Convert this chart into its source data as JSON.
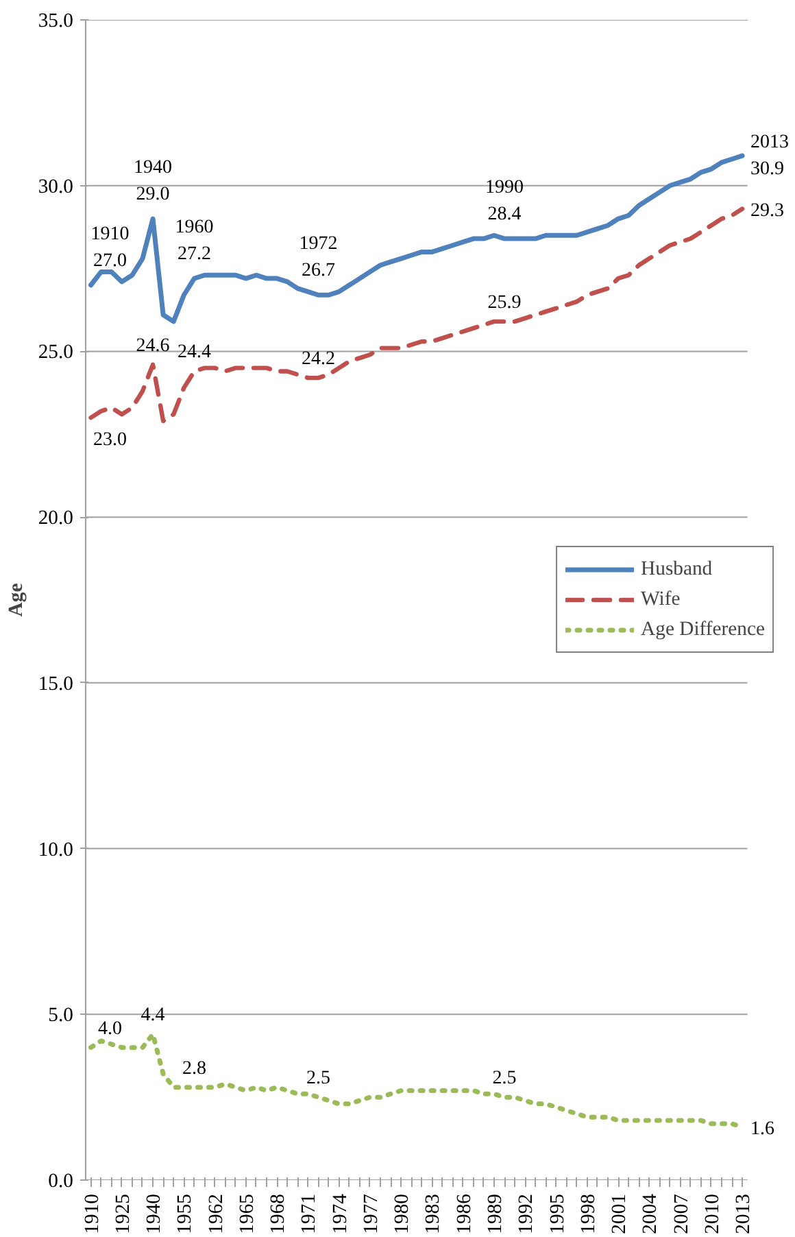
{
  "chart_data": {
    "type": "line",
    "ylabel": "Age",
    "categories": [
      "1910",
      null,
      null,
      "1925",
      null,
      null,
      "1940",
      null,
      null,
      "1955",
      null,
      null,
      "1962",
      null,
      null,
      "1965",
      null,
      null,
      "1968",
      null,
      null,
      "1971",
      null,
      null,
      "1974",
      null,
      null,
      "1977",
      null,
      null,
      "1980",
      null,
      null,
      "1983",
      null,
      null,
      "1986",
      null,
      null,
      "1989",
      null,
      null,
      "1992",
      null,
      null,
      "1995",
      null,
      null,
      "1998",
      null,
      null,
      "2001",
      null,
      null,
      "2004",
      null,
      null,
      "2007",
      null,
      null,
      "2010",
      null,
      null,
      "2013"
    ],
    "series": [
      {
        "name": "Husband",
        "color": "#4f81bd",
        "line_style": "solid",
        "values": [
          27.0,
          27.4,
          27.4,
          27.1,
          27.3,
          27.8,
          29.0,
          26.1,
          25.9,
          26.7,
          27.2,
          27.3,
          27.3,
          27.3,
          27.3,
          27.2,
          27.3,
          27.2,
          27.2,
          27.1,
          26.9,
          26.8,
          26.7,
          26.7,
          26.8,
          27.0,
          27.2,
          27.4,
          27.6,
          27.7,
          27.8,
          27.9,
          28.0,
          28.0,
          28.1,
          28.2,
          28.3,
          28.4,
          28.4,
          28.5,
          28.4,
          28.4,
          28.4,
          28.4,
          28.5,
          28.5,
          28.5,
          28.5,
          28.6,
          28.7,
          28.8,
          29.0,
          29.1,
          29.4,
          29.6,
          29.8,
          30.0,
          30.1,
          30.2,
          30.4,
          30.5,
          30.7,
          30.8,
          30.9
        ],
        "value_labels": [
          "1910\n27.0",
          null,
          null,
          null,
          null,
          null,
          "1940\n29.0",
          null,
          null,
          null,
          "1960\n27.2",
          null,
          null,
          null,
          null,
          null,
          null,
          null,
          null,
          null,
          null,
          null,
          "1972\n26.7",
          null,
          null,
          null,
          null,
          null,
          null,
          null,
          null,
          null,
          null,
          null,
          null,
          null,
          null,
          null,
          null,
          null,
          "1990\n28.4",
          null,
          null,
          null,
          null,
          null,
          null,
          null,
          null,
          null,
          null,
          null,
          null,
          null,
          null,
          null,
          null,
          null,
          null,
          null,
          null,
          null,
          null,
          "2013\n30.9"
        ]
      },
      {
        "name": "Wife",
        "color": "#c0504d",
        "line_style": "dashed",
        "values": [
          23.0,
          23.2,
          23.3,
          23.1,
          23.3,
          23.8,
          24.6,
          22.9,
          23.1,
          23.9,
          24.4,
          24.5,
          24.5,
          24.4,
          24.5,
          24.5,
          24.5,
          24.5,
          24.4,
          24.4,
          24.3,
          24.2,
          24.2,
          24.3,
          24.5,
          24.7,
          24.8,
          24.9,
          25.1,
          25.1,
          25.1,
          25.2,
          25.3,
          25.3,
          25.4,
          25.5,
          25.6,
          25.7,
          25.8,
          25.9,
          25.9,
          25.9,
          26.0,
          26.1,
          26.2,
          26.3,
          26.4,
          26.5,
          26.7,
          26.8,
          26.9,
          27.2,
          27.3,
          27.6,
          27.8,
          28.0,
          28.2,
          28.3,
          28.4,
          28.6,
          28.8,
          29.0,
          29.1,
          29.3
        ],
        "value_labels": [
          "23.0",
          null,
          null,
          null,
          null,
          null,
          "24.6",
          null,
          null,
          null,
          "24.4",
          null,
          null,
          null,
          null,
          null,
          null,
          null,
          null,
          null,
          null,
          null,
          "24.2",
          null,
          null,
          null,
          null,
          null,
          null,
          null,
          null,
          null,
          null,
          null,
          null,
          null,
          null,
          null,
          null,
          null,
          "25.9",
          null,
          null,
          null,
          null,
          null,
          null,
          null,
          null,
          null,
          null,
          null,
          null,
          null,
          null,
          null,
          null,
          null,
          null,
          null,
          null,
          null,
          null,
          "29.3"
        ]
      },
      {
        "name": "Age Difference",
        "color": "#9bbb59",
        "line_style": "dotted",
        "values": [
          4.0,
          4.2,
          4.1,
          4.0,
          4.0,
          4.0,
          4.4,
          3.2,
          2.8,
          2.8,
          2.8,
          2.8,
          2.8,
          2.9,
          2.8,
          2.7,
          2.8,
          2.7,
          2.8,
          2.7,
          2.6,
          2.6,
          2.5,
          2.4,
          2.3,
          2.3,
          2.4,
          2.5,
          2.5,
          2.6,
          2.7,
          2.7,
          2.7,
          2.7,
          2.7,
          2.7,
          2.7,
          2.7,
          2.6,
          2.6,
          2.5,
          2.5,
          2.4,
          2.3,
          2.3,
          2.2,
          2.1,
          2.0,
          1.9,
          1.9,
          1.9,
          1.8,
          1.8,
          1.8,
          1.8,
          1.8,
          1.8,
          1.8,
          1.8,
          1.8,
          1.7,
          1.7,
          1.7,
          1.6
        ],
        "value_labels": [
          "4.0",
          null,
          null,
          null,
          null,
          null,
          "4.4",
          null,
          null,
          null,
          "2.8",
          null,
          null,
          null,
          null,
          null,
          null,
          null,
          null,
          null,
          null,
          null,
          "2.5",
          null,
          null,
          null,
          null,
          null,
          null,
          null,
          null,
          null,
          null,
          null,
          null,
          null,
          null,
          null,
          null,
          null,
          "2.5",
          null,
          null,
          null,
          null,
          null,
          null,
          null,
          null,
          null,
          null,
          null,
          null,
          null,
          null,
          null,
          null,
          null,
          null,
          null,
          null,
          null,
          null,
          "1.6"
        ]
      }
    ],
    "ylim": [
      0,
      35
    ],
    "yticks": [
      {
        "value": 0,
        "label": "0.0"
      },
      {
        "value": 5,
        "label": "5.0"
      },
      {
        "value": 10,
        "label": "10.0"
      },
      {
        "value": 15,
        "label": "15.0"
      },
      {
        "value": 20,
        "label": "20.0"
      },
      {
        "value": 25,
        "label": "25.0"
      },
      {
        "value": 30,
        "label": "30.0"
      },
      {
        "value": 35,
        "label": "35.0"
      }
    ],
    "grid": "y",
    "legend": "right"
  }
}
